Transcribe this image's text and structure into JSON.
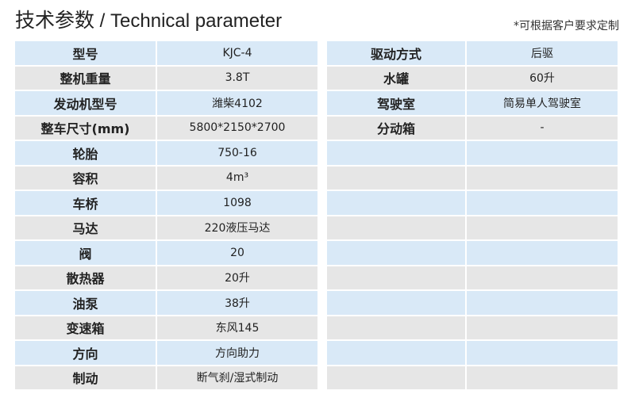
{
  "header": {
    "title_cn": "技术参数",
    "separator": " / ",
    "title_en": "Technical parameter",
    "note": "*可根据客户要求定制"
  },
  "colors": {
    "row_odd": "#d9e9f7",
    "row_even": "#e6e6e6"
  },
  "left_table": [
    {
      "key": "型号",
      "value": "KJC-4"
    },
    {
      "key": "整机重量",
      "value": "3.8T"
    },
    {
      "key": "发动机型号",
      "value": "潍柴4102"
    },
    {
      "key": "整车尺寸(mm)",
      "value": "5800*2150*2700"
    },
    {
      "key": "轮胎",
      "value": "750-16"
    },
    {
      "key": "容积",
      "value": "4m³"
    },
    {
      "key": "车桥",
      "value": "1098"
    },
    {
      "key": "马达",
      "value": "220液压马达"
    },
    {
      "key": "阀",
      "value": "20"
    },
    {
      "key": "散热器",
      "value": "20升"
    },
    {
      "key": "油泵",
      "value": "38升"
    },
    {
      "key": "变速箱",
      "value": "东风145"
    },
    {
      "key": "方向",
      "value": "方向助力"
    },
    {
      "key": "制动",
      "value": "断气刹/湿式制动"
    }
  ],
  "right_table": [
    {
      "key": "驱动方式",
      "value": "后驱"
    },
    {
      "key": "水罐",
      "value": "60升"
    },
    {
      "key": "驾驶室",
      "value": "简易单人驾驶室"
    },
    {
      "key": "分动箱",
      "value": "-"
    },
    {
      "key": "",
      "value": ""
    },
    {
      "key": "",
      "value": ""
    },
    {
      "key": "",
      "value": ""
    },
    {
      "key": "",
      "value": ""
    },
    {
      "key": "",
      "value": ""
    },
    {
      "key": "",
      "value": ""
    },
    {
      "key": "",
      "value": ""
    },
    {
      "key": "",
      "value": ""
    },
    {
      "key": "",
      "value": ""
    },
    {
      "key": "",
      "value": ""
    }
  ]
}
